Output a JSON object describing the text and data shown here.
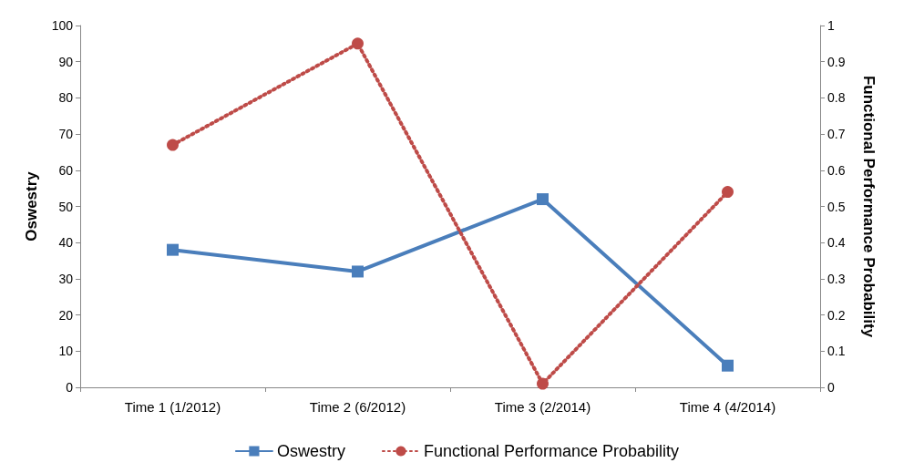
{
  "chart_data": {
    "type": "line",
    "ylabel": "Oswestry",
    "y2label": "Functional Performance Probability",
    "categories": [
      "Time 1 (1/2012)",
      "Time 2 (6/2012)",
      "Time 3 (2/2014)",
      "Time 4 (4/2014)"
    ],
    "series": [
      {
        "name": "Oswestry",
        "color": "#4a7ebb",
        "values": [
          38,
          32,
          52,
          6
        ],
        "marker": "square",
        "line_style": "solid"
      },
      {
        "name": "Functional Performance Probability",
        "color": "#be4b48",
        "values": [
          0.67,
          0.95,
          0.01,
          0.54
        ],
        "axis": "y2",
        "marker": "circle",
        "line_style": "dotted"
      }
    ],
    "ylim": [
      0,
      100
    ],
    "yticks": [
      0,
      10,
      20,
      30,
      40,
      50,
      60,
      70,
      80,
      90,
      100
    ],
    "y2lim": [
      0,
      1
    ],
    "y2ticks": [
      0,
      0.1,
      0.2,
      0.3,
      0.4,
      0.5,
      0.6,
      0.7,
      0.8,
      0.9,
      1
    ],
    "grid": false,
    "legend": "bottom"
  }
}
